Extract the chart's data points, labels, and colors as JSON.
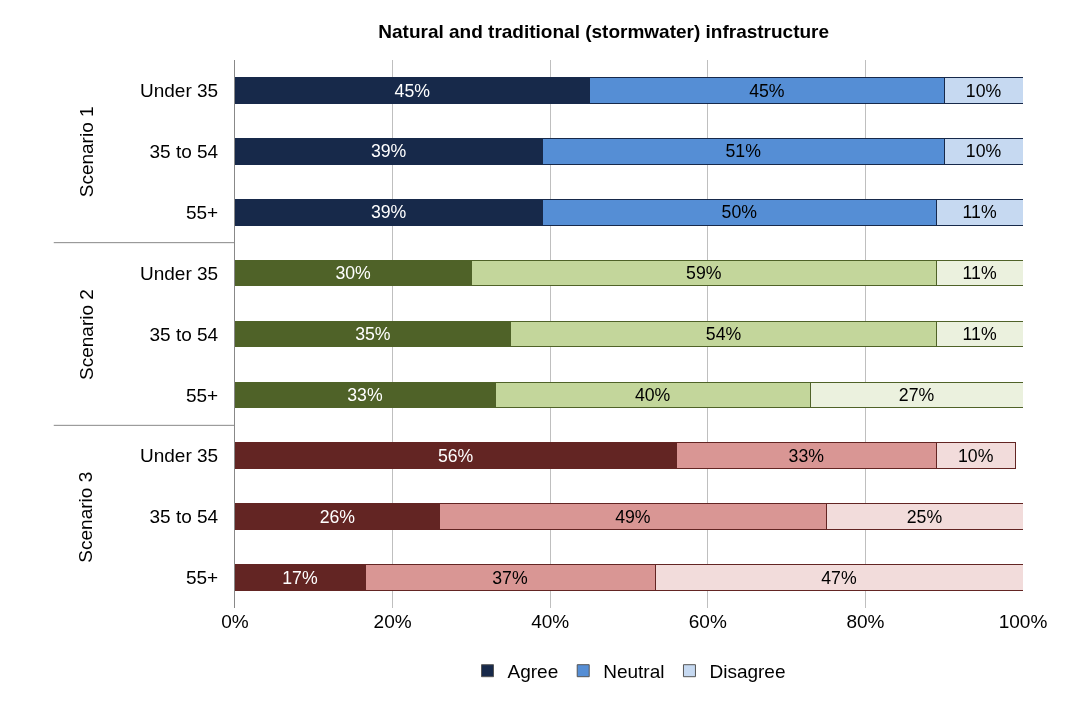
{
  "chart_data": {
    "type": "bar",
    "orientation": "horizontal",
    "stacked": true,
    "title": "Natural and traditional (stormwater) infrastructure",
    "categories": [
      "Under 35",
      "35 to 54",
      "55+",
      "Under 35",
      "35 to 54",
      "55+",
      "Under 35",
      "35 to 54",
      "55+"
    ],
    "series": [
      {
        "name": "Agree",
        "color": "#17294a",
        "colors": [
          "#17294a",
          "#17294a",
          "#17294a",
          "#4f6228",
          "#4f6228",
          "#4f6228",
          "#632523",
          "#632523",
          "#632523"
        ],
        "values": [
          45,
          39,
          39,
          30,
          35,
          33,
          56,
          26,
          16.5
        ],
        "value_labels": [
          "45%",
          "39%",
          "39%",
          "30%",
          "35%",
          "33%",
          "56%",
          "26%",
          "17%"
        ]
      },
      {
        "name": "Neutral",
        "color": "#558ed5",
        "colors": [
          "#558ed5",
          "#558ed5",
          "#558ed5",
          "#c3d69b",
          "#c3d69b",
          "#c3d69b",
          "#d99694",
          "#d99694",
          "#d99694"
        ],
        "values": [
          45,
          51,
          50,
          59,
          54,
          40,
          33,
          49,
          36.8
        ],
        "value_labels": [
          "45%",
          "51%",
          "50%",
          "59%",
          "54%",
          "40%",
          "33%",
          "49%",
          "37%"
        ]
      },
      {
        "name": "Disagree",
        "color": "#c6d9f1",
        "colors": [
          "#c6d9f1",
          "#c6d9f1",
          "#c6d9f1",
          "#ebf1de",
          "#ebf1de",
          "#ebf1de",
          "#f2dcdb",
          "#f2dcdb",
          "#f2dcdb"
        ],
        "values": [
          10,
          10,
          11,
          11,
          11,
          27,
          10,
          25,
          46.7
        ],
        "value_labels": [
          "10%",
          "10%",
          "11%",
          "11%",
          "11%",
          "27%",
          "10%",
          "25%",
          "47%"
        ]
      }
    ],
    "annotations": [
      "Scenario 1",
      "Scenario 2",
      "Scenario 3"
    ],
    "xlim": [
      0,
      100
    ],
    "xticks": [
      {
        "value": 0,
        "label": "0%"
      },
      {
        "value": 20,
        "label": "20%"
      },
      {
        "value": 40,
        "label": "40%"
      },
      {
        "value": 60,
        "label": "60%"
      },
      {
        "value": 80,
        "label": "80%"
      },
      {
        "value": 100,
        "label": "100%"
      }
    ],
    "grid": "x",
    "legend": "bottom"
  }
}
